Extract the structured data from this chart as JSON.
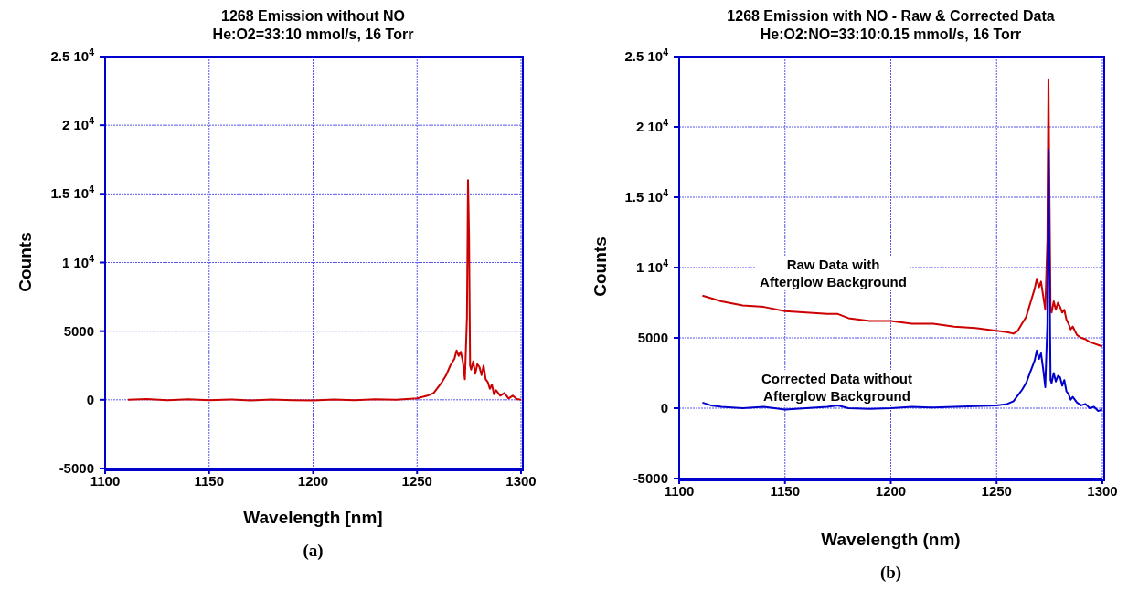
{
  "chart_data": [
    {
      "type": "line",
      "title": "1268 Emission without NO",
      "subtitle": "He:O2=33:10 mmol/s, 16 Torr",
      "xlabel": "Wavelength [nm]",
      "ylabel": "Counts",
      "annotations": [
        "(a)"
      ],
      "xlim": [
        1100,
        1300
      ],
      "ylim": [
        -5000,
        25000
      ],
      "xticks": [
        1100,
        1150,
        1200,
        1250,
        1300
      ],
      "yticks": [
        -5000,
        0,
        5000,
        {
          "value": 10000,
          "label": "1 10$^{4}$"
        },
        {
          "value": 15000,
          "label": "1.5 10$^{4}$"
        },
        {
          "value": 20000,
          "label": "2 10$^{4}$"
        },
        {
          "value": 25000,
          "label": "2.5 10$^{4}$"
        }
      ],
      "grid": true,
      "line_style": "solid",
      "series": [
        {
          "color": "#cc0000",
          "x": [
            1111,
            1120,
            1130,
            1140,
            1150,
            1160,
            1170,
            1180,
            1190,
            1200,
            1210,
            1220,
            1230,
            1240,
            1245,
            1250,
            1255,
            1258,
            1260,
            1262,
            1264,
            1266,
            1268,
            1269,
            1270,
            1271,
            1272,
            1273,
            1274,
            1274.5,
            1275,
            1275.5,
            1276,
            1277,
            1278,
            1279,
            1280,
            1281,
            1282,
            1283,
            1284,
            1285,
            1286,
            1287,
            1288,
            1290,
            1292,
            1294,
            1296,
            1298,
            1300
          ],
          "values": [
            0,
            50,
            -30,
            40,
            -20,
            30,
            -40,
            20,
            -30,
            -50,
            30,
            -20,
            40,
            0,
            60,
            100,
            300,
            500,
            900,
            1300,
            1800,
            2500,
            3000,
            3600,
            3200,
            3500,
            2800,
            1500,
            6000,
            16000,
            12000,
            2500,
            2200,
            2800,
            1900,
            2600,
            2400,
            1800,
            2500,
            1500,
            1300,
            800,
            1100,
            400,
            700,
            300,
            500,
            100,
            300,
            50,
            0
          ]
        }
      ]
    },
    {
      "type": "line",
      "title": "1268 Emission with NO - Raw & Corrected Data",
      "subtitle": "He:O2:NO=33:10:0.15 mmol/s, 16 Torr",
      "xlabel": "Wavelength (nm)",
      "ylabel": "Counts",
      "annotations": [
        "(b)"
      ],
      "xlim": [
        1100,
        1300
      ],
      "ylim": [
        -5000,
        25000
      ],
      "xticks": [
        1100,
        1150,
        1200,
        1250,
        1300
      ],
      "yticks": [
        -5000,
        0,
        5000,
        {
          "value": 10000,
          "label": "1 10$^{4}$"
        },
        {
          "value": 15000,
          "label": "1.5 10$^{4}$"
        },
        {
          "value": 20000,
          "label": "2 10$^{4}$"
        },
        {
          "value": 25000,
          "label": "2.5 10$^{4}$"
        }
      ],
      "grid": true,
      "line_style": "solid",
      "series": [
        {
          "name": "Raw Data with\nAfterglow Background",
          "color": "#cc0000",
          "x": [
            1111,
            1120,
            1130,
            1140,
            1150,
            1160,
            1170,
            1175,
            1180,
            1190,
            1200,
            1210,
            1220,
            1230,
            1240,
            1250,
            1255,
            1258,
            1260,
            1262,
            1264,
            1266,
            1268,
            1269,
            1270,
            1271,
            1272,
            1273,
            1274,
            1274.5,
            1275,
            1275.5,
            1276,
            1277,
            1278,
            1279,
            1280,
            1281,
            1282,
            1283,
            1284,
            1285,
            1286,
            1288,
            1290,
            1292,
            1294,
            1296,
            1298,
            1300
          ],
          "values": [
            8000,
            7600,
            7300,
            7200,
            6900,
            6800,
            6700,
            6700,
            6400,
            6200,
            6200,
            6000,
            6000,
            5800,
            5700,
            5500,
            5400,
            5300,
            5500,
            6000,
            6500,
            7500,
            8500,
            9200,
            8600,
            9000,
            8000,
            7000,
            12000,
            23400,
            15000,
            7000,
            6800,
            7600,
            7000,
            7500,
            7200,
            6800,
            7000,
            6300,
            6000,
            5600,
            5800,
            5200,
            5000,
            4900,
            4700,
            4600,
            4500,
            4400
          ]
        },
        {
          "name": "Corrected Data without\nAfterglow Background",
          "color": "#0000cc",
          "x": [
            1111,
            1115,
            1120,
            1130,
            1140,
            1150,
            1160,
            1170,
            1175,
            1180,
            1190,
            1200,
            1210,
            1220,
            1230,
            1240,
            1250,
            1255,
            1258,
            1260,
            1262,
            1264,
            1266,
            1268,
            1269,
            1270,
            1271,
            1272,
            1273,
            1274,
            1274.5,
            1275,
            1275.5,
            1276,
            1277,
            1278,
            1279,
            1280,
            1281,
            1282,
            1283,
            1284,
            1285,
            1286,
            1288,
            1290,
            1292,
            1294,
            1296,
            1298,
            1300
          ],
          "values": [
            400,
            200,
            100,
            0,
            100,
            -100,
            0,
            100,
            200,
            0,
            -50,
            0,
            100,
            50,
            100,
            150,
            200,
            300,
            500,
            900,
            1300,
            1800,
            2600,
            3400,
            4100,
            3500,
            3900,
            2800,
            1500,
            6000,
            18400,
            10000,
            2000,
            1800,
            2500,
            1900,
            2300,
            2200,
            1600,
            2000,
            1200,
            1000,
            600,
            800,
            400,
            200,
            300,
            0,
            100,
            -200,
            -100
          ]
        }
      ]
    }
  ]
}
